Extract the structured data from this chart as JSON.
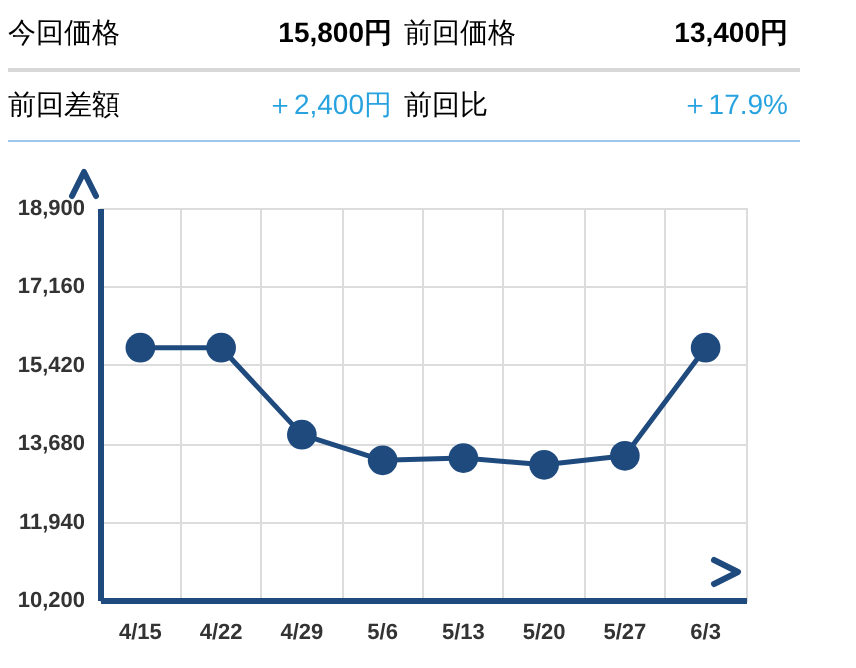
{
  "chart_data": [
    {
      "type": "other",
      "annotations": [
        "今回価格",
        "15,800円",
        "前回価格",
        "13,400円",
        "前回差額",
        "＋2,400円",
        "前回比",
        "＋17.9%"
      ]
    },
    {
      "type": "line",
      "categories": [
        "4/15",
        "4/22",
        "4/29",
        "5/6",
        "5/13",
        "5/20",
        "5/27",
        "6/3"
      ],
      "series": [
        {
          "color": "#1f4a7e",
          "values": [
            15800,
            15800,
            13870,
            13300,
            13350,
            13200,
            13400,
            15800
          ]
        }
      ],
      "ylim": [
        10200,
        18900
      ],
      "yticks": [
        {
          "value": 10200,
          "label": "10,200"
        },
        {
          "value": 11940,
          "label": "11,940"
        },
        {
          "value": 13680,
          "label": "13,680"
        },
        {
          "value": 15420,
          "label": "15,420"
        },
        {
          "value": 17160,
          "label": "17,160"
        },
        {
          "value": 18900,
          "label": "18,900"
        }
      ],
      "grid": true,
      "marker": "circle",
      "line_style": "solid"
    }
  ]
}
